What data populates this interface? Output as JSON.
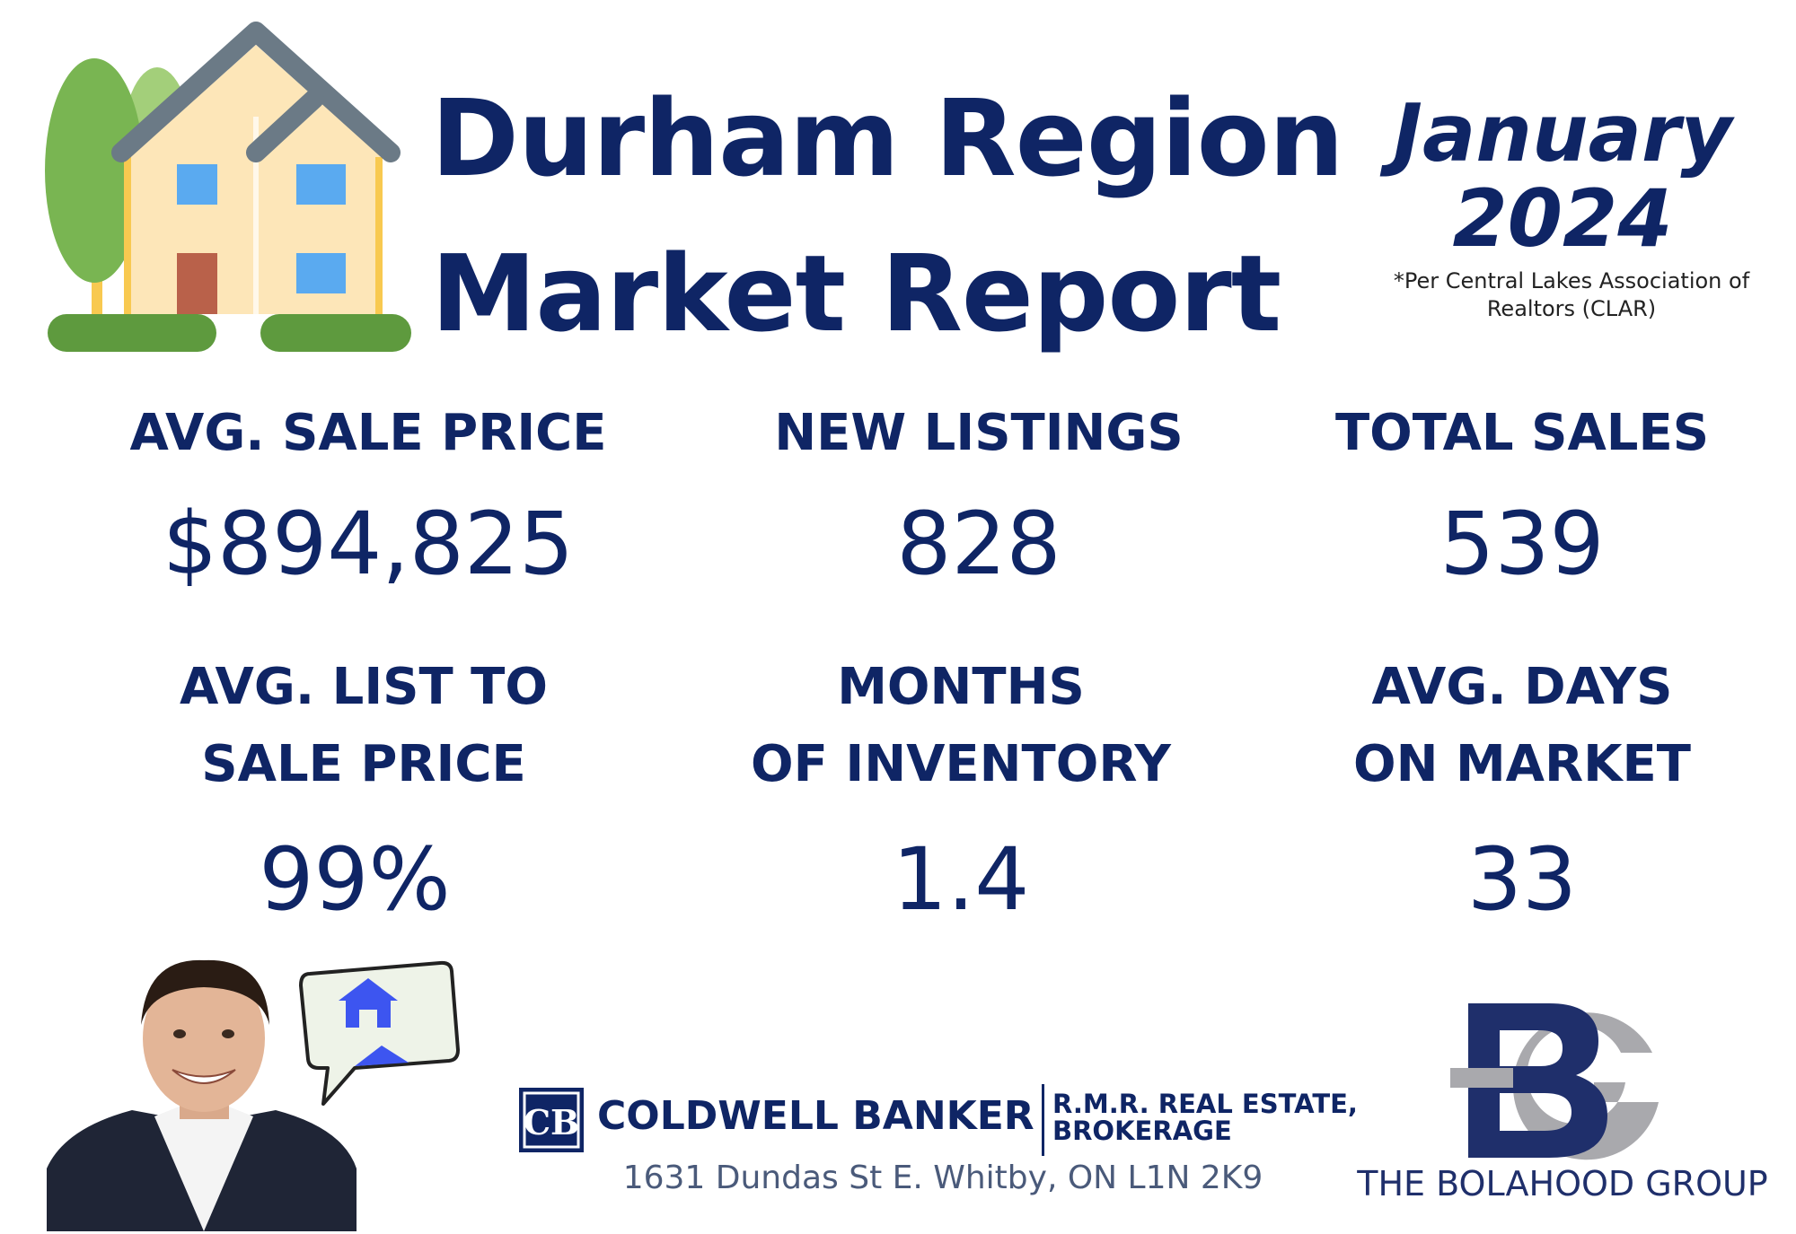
{
  "header": {
    "title_line1": "Durham Region",
    "title_line2": "Market Report",
    "month": "January",
    "year": "2024",
    "source_line1": "*Per Central Lakes Association of",
    "source_line2": "Realtors (CLAR)"
  },
  "stats": {
    "avg_sale_price": {
      "label": "AVG. SALE PRICE",
      "value": "$894,825"
    },
    "new_listings": {
      "label": "NEW LISTINGS",
      "value": "828"
    },
    "total_sales": {
      "label": "TOTAL SALES",
      "value": "539"
    },
    "avg_list_to_sale": {
      "label_line1": "AVG. LIST TO",
      "label_line2": "SALE PRICE",
      "value": "99%"
    },
    "months_inventory": {
      "label_line1": "MONTHS",
      "label_line2": "OF INVENTORY",
      "value": "1.4"
    },
    "avg_days_market": {
      "label_line1": "AVG. DAYS",
      "label_line2": "ON MARKET",
      "value": "33"
    }
  },
  "footer": {
    "brokerage_name": "COLDWELL BANKER",
    "brokerage_sub1": "R.M.R. REAL ESTATE,",
    "brokerage_sub2": "BROKERAGE",
    "address": "1631 Dundas St E. Whitby, ON L1N 2K9",
    "group_name": "THE BOLAHOOD GROUP"
  },
  "colors": {
    "navy": "#0f2565",
    "house_roof": "#6b7a86",
    "house_wall": "#fde6b8",
    "window": "#5aaaf0",
    "door": "#b9614a",
    "grass": "#5e9a3e",
    "tree": "#79b552",
    "logo_gray": "#a9a9ad"
  },
  "icons": {
    "house": "house-illustration-icon",
    "speech": "speech-bubble-house-icon",
    "cb_logo": "coldwell-banker-cb-icon",
    "bg_logo": "bolahood-bg-monogram-icon"
  }
}
